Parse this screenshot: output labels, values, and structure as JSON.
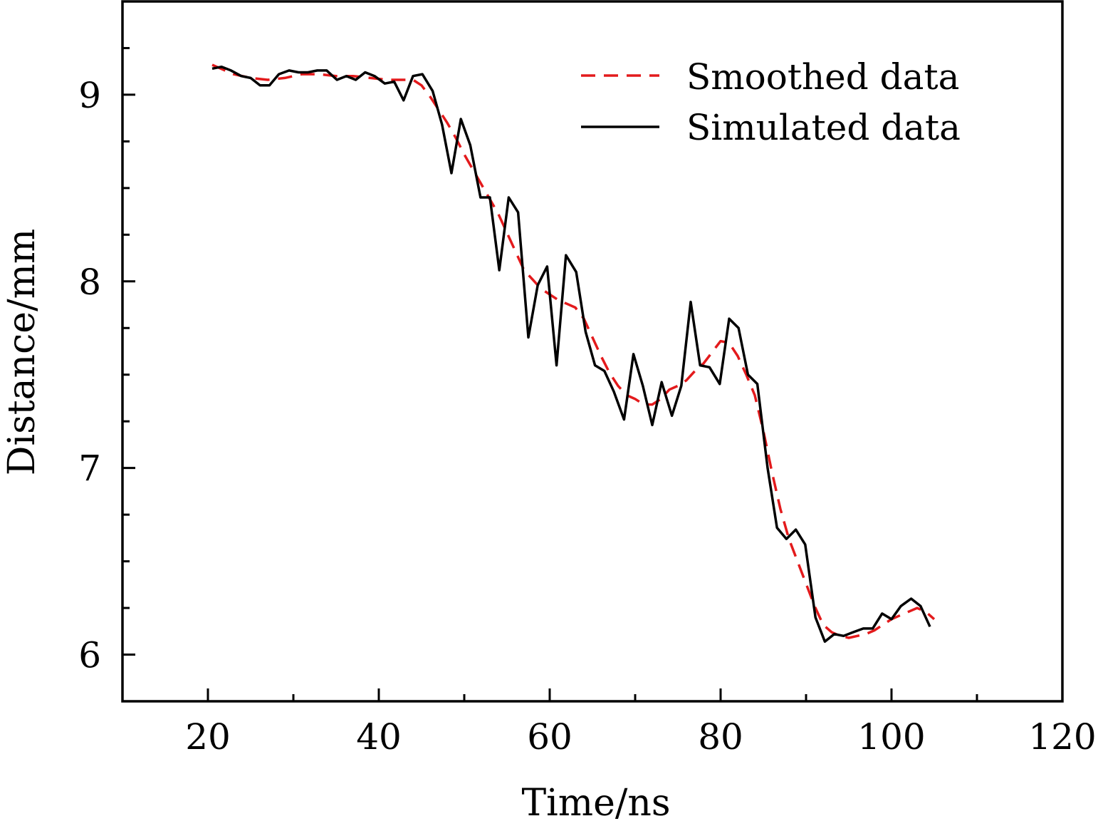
{
  "chart_data": {
    "type": "line",
    "xlabel": "Time/ns",
    "ylabel": "Distance/mm",
    "xlim": [
      10,
      120
    ],
    "ylim": [
      5.75,
      9.5
    ],
    "xticks_major": [
      20,
      40,
      60,
      80,
      100,
      120
    ],
    "xtick_labels": [
      "20",
      "40",
      "60",
      "80",
      "100",
      "120"
    ],
    "xticks_minor": [
      30,
      50,
      70,
      90,
      110
    ],
    "yticks_major": [
      6,
      7,
      8,
      9
    ],
    "ytick_labels": [
      "6",
      "7",
      "8",
      "9"
    ],
    "yticks_minor": [
      6.25,
      6.5,
      6.75,
      7.25,
      7.5,
      7.75,
      8.25,
      8.5,
      8.75,
      9.25
    ],
    "grid": false,
    "legend_position": "top-right",
    "series": [
      {
        "name": "Smoothed data",
        "style": "dashed",
        "color": "#e31a1c",
        "x": [
          20.5,
          23,
          25,
          27,
          29,
          31,
          33,
          35,
          37,
          39,
          41,
          43,
          44,
          45,
          46,
          47,
          48,
          49,
          50,
          51,
          52,
          53,
          54,
          55,
          56,
          57,
          58,
          59,
          60,
          61,
          62,
          63,
          64,
          65,
          66,
          67,
          68,
          69,
          70,
          71,
          72,
          73,
          74,
          75,
          76,
          77,
          78,
          79,
          80,
          81,
          82,
          83,
          84,
          85,
          86,
          87,
          88,
          89,
          90,
          91,
          92,
          93,
          94,
          95,
          96,
          97,
          98,
          99,
          100,
          101,
          102,
          103,
          104,
          105
        ],
        "y": [
          9.16,
          9.11,
          9.09,
          9.08,
          9.09,
          9.11,
          9.11,
          9.1,
          9.1,
          9.09,
          9.08,
          9.08,
          9.08,
          9.05,
          8.99,
          8.92,
          8.85,
          8.77,
          8.68,
          8.6,
          8.52,
          8.44,
          8.36,
          8.26,
          8.16,
          8.06,
          8.01,
          7.96,
          7.93,
          7.9,
          7.88,
          7.86,
          7.8,
          7.7,
          7.6,
          7.51,
          7.44,
          7.39,
          7.37,
          7.34,
          7.34,
          7.37,
          7.42,
          7.44,
          7.47,
          7.52,
          7.56,
          7.62,
          7.68,
          7.67,
          7.6,
          7.5,
          7.39,
          7.2,
          6.98,
          6.78,
          6.62,
          6.5,
          6.38,
          6.26,
          6.16,
          6.12,
          6.1,
          6.09,
          6.1,
          6.11,
          6.13,
          6.16,
          6.19,
          6.21,
          6.23,
          6.25,
          6.23,
          6.19
        ]
      },
      {
        "name": "Simulated data",
        "style": "solid",
        "color": "#000000",
        "x": [
          20.5,
          21.6,
          22.7,
          23.9,
          25.0,
          26.1,
          27.2,
          28.3,
          29.5,
          30.6,
          31.7,
          32.8,
          33.9,
          35.1,
          36.2,
          37.3,
          38.4,
          39.5,
          40.7,
          41.8,
          42.9,
          44.0,
          45.1,
          46.3,
          47.4,
          48.5,
          49.6,
          50.7,
          51.9,
          53.0,
          54.1,
          55.2,
          56.3,
          57.5,
          58.6,
          59.7,
          60.8,
          61.9,
          63.1,
          64.2,
          65.3,
          66.4,
          67.5,
          68.7,
          69.8,
          70.9,
          72.0,
          73.1,
          74.3,
          75.4,
          76.5,
          77.6,
          78.7,
          79.9,
          81.0,
          82.1,
          83.2,
          84.3,
          85.5,
          86.6,
          87.7,
          88.8,
          89.9,
          91.1,
          92.2,
          93.3,
          94.4,
          95.5,
          96.7,
          97.8,
          98.9,
          100.0,
          101.1,
          102.3,
          103.4,
          104.5
        ],
        "y": [
          9.14,
          9.15,
          9.13,
          9.1,
          9.09,
          9.05,
          9.05,
          9.11,
          9.13,
          9.12,
          9.12,
          9.13,
          9.13,
          9.08,
          9.1,
          9.08,
          9.12,
          9.1,
          9.06,
          9.07,
          8.97,
          9.1,
          9.11,
          9.02,
          8.84,
          8.58,
          8.87,
          8.73,
          8.45,
          8.45,
          8.06,
          8.45,
          8.37,
          7.7,
          7.98,
          8.08,
          7.55,
          8.14,
          8.05,
          7.73,
          7.55,
          7.52,
          7.41,
          7.26,
          7.61,
          7.44,
          7.23,
          7.46,
          7.28,
          7.44,
          7.89,
          7.55,
          7.54,
          7.45,
          7.8,
          7.75,
          7.5,
          7.45,
          7.0,
          6.68,
          6.62,
          6.67,
          6.59,
          6.2,
          6.07,
          6.11,
          6.1,
          6.12,
          6.14,
          6.14,
          6.22,
          6.19,
          6.26,
          6.3,
          6.26,
          6.15
        ]
      }
    ]
  }
}
